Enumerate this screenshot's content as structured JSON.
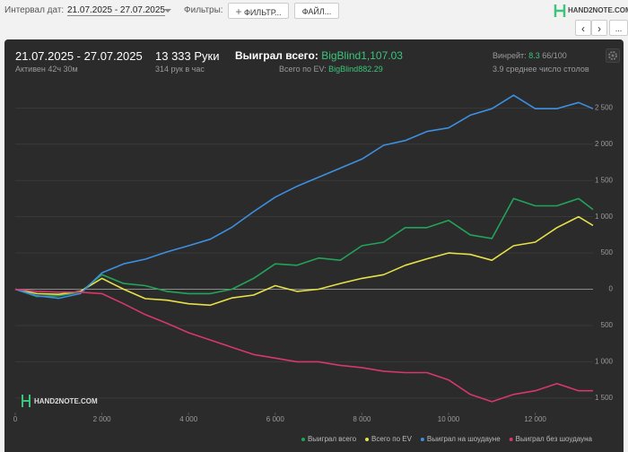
{
  "toolbar": {
    "date_label": "Интервал дат:",
    "date_range": "21.07.2025 - 27.07.2025",
    "filters_label": "Фильтры:",
    "filter_button": "ФИЛЬТР...",
    "file_button": "ФАЙЛ...",
    "logo": "HAND2NOTE.COM",
    "more_button": "..."
  },
  "stats": {
    "date_range": "21.07.2025 - 27.07.2025",
    "active": "Активен 42ч 30м",
    "hands": "13 333 Руки",
    "hands_per_hour": "314 рук в час",
    "won_label": "Выиграл всего:",
    "won_value": "BigBlind1,107.03",
    "ev_label": "Всего по EV:",
    "ev_value": "BigBlind882.29",
    "winrate_label": "Винрейт:",
    "winrate_value": "8.3",
    "winrate_unit": "66/100",
    "tables": "3.9 среднее число столов"
  },
  "chart_data": {
    "type": "line",
    "watermark": "HAND2NOTE.COM",
    "x": [
      0,
      500,
      1000,
      1500,
      2000,
      2500,
      3000,
      3500,
      4000,
      4500,
      5000,
      5500,
      6000,
      6500,
      7000,
      7500,
      8000,
      8500,
      9000,
      9500,
      10000,
      10500,
      11000,
      11500,
      12000,
      12500,
      13000,
      13333
    ],
    "series": [
      {
        "name": "Выиграл всего",
        "color": "#22a35a",
        "values": [
          0,
          -100,
          -90,
          -40,
          200,
          80,
          50,
          -30,
          -60,
          -60,
          0,
          150,
          350,
          330,
          430,
          400,
          600,
          650,
          850,
          850,
          950,
          750,
          700,
          1250,
          1150,
          1150,
          1250,
          1100
        ]
      },
      {
        "name": "Всего по EV",
        "color": "#e6e04a",
        "values": [
          0,
          -60,
          -70,
          -30,
          150,
          0,
          -130,
          -150,
          -200,
          -220,
          -120,
          -80,
          50,
          -30,
          0,
          80,
          150,
          200,
          330,
          420,
          500,
          480,
          400,
          600,
          650,
          850,
          1000,
          880
        ]
      },
      {
        "name": "Выиграл на шоудауне",
        "color": "#3d8fe0",
        "values": [
          0,
          -90,
          -125,
          -60,
          225,
          350,
          415,
          515,
          600,
          690,
          855,
          1070,
          1270,
          1420,
          1545,
          1670,
          1795,
          1985,
          2050,
          2175,
          2225,
          2400,
          2490,
          2675,
          2490,
          2490,
          2575,
          2490
        ]
      },
      {
        "name": "Выиграл без шоудауна",
        "color": "#d6386b",
        "values": [
          0,
          -30,
          -40,
          -40,
          -60,
          -200,
          -350,
          -470,
          -600,
          -700,
          -800,
          -900,
          -950,
          -1000,
          -1000,
          -1050,
          -1080,
          -1130,
          -1150,
          -1150,
          -1250,
          -1450,
          -1550,
          -1450,
          -1400,
          -1300,
          -1400,
          -1400
        ]
      }
    ],
    "xlim": [
      0,
      13333
    ],
    "xticks": [
      0,
      {
        "value": 2000,
        "label": "2 000"
      },
      {
        "value": 4000,
        "label": "4 000"
      },
      {
        "value": 6000,
        "label": "6 000"
      },
      {
        "value": 8000,
        "label": "8 000"
      },
      {
        "value": 10000,
        "label": "10 000"
      },
      {
        "value": 12000,
        "label": "12 000"
      }
    ],
    "ylim": [
      -1700,
      2900
    ],
    "yticks": [
      {
        "value": 2500,
        "label": "2 500"
      },
      {
        "value": 2000,
        "label": "2 000"
      },
      {
        "value": 1500,
        "label": "1 500"
      },
      {
        "value": 1000,
        "label": "1 000"
      },
      500,
      0,
      {
        "value": -500,
        "label": "500"
      },
      {
        "value": -1000,
        "label": "1 000"
      },
      {
        "value": -1500,
        "label": "1 500"
      }
    ],
    "grid": true
  }
}
